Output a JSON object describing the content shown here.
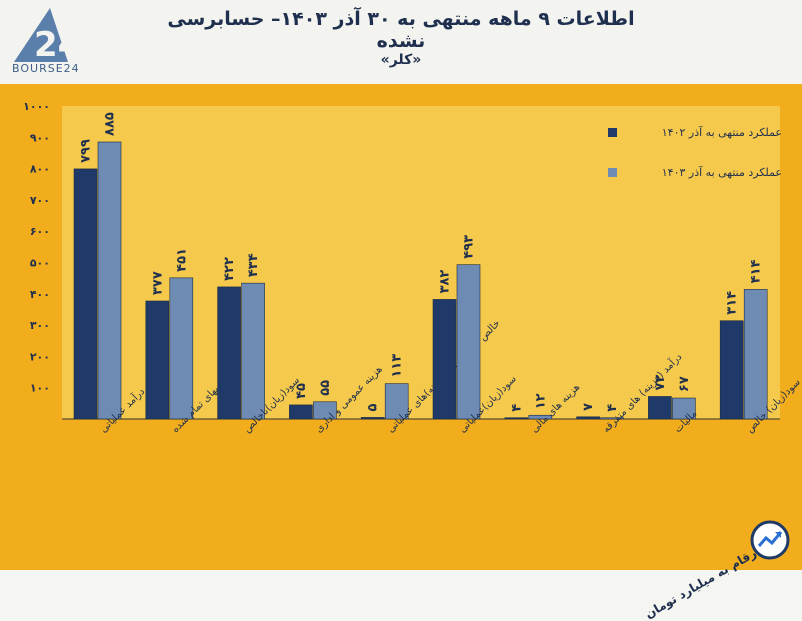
{
  "header": {
    "title": "اطلاعات ۹ ماهه منتهی به ۳۰ آذر ۱۴۰۳– حسابرسی نشده",
    "subtitle": "«کلر»",
    "logo_text": "BOURSE24",
    "logo_mark": "24"
  },
  "footer": {
    "unit_note": "ارقام به میلیارد تومان"
  },
  "colors": {
    "series1": "#1f3a68",
    "series2": "#6d8bb3",
    "panel": "#f2ad1c",
    "plot": "#f5c94b"
  },
  "chart_data": {
    "type": "bar",
    "title": "اطلاعات ۹ ماهه منتهی به ۳۰ آذر ۱۴۰۳– حسابرسی نشده",
    "subtitle": "«کلر»",
    "categories": [
      "درآمد عملیاتی",
      "بهای تمام شده",
      "سود(زیان)ناخالص",
      "هزینه عمومی و اداری",
      "خالص سایر درآمد(هزینه)های عملیاتی",
      "سود(زیان)عملیاتی",
      "هزینه های مالی",
      "درآمد (هزینه) های متفرقه",
      "مالیات",
      "سود(زیان) خالص"
    ],
    "series": [
      {
        "name": "عملکرد منتهی به آذر ۱۴۰۲",
        "values": [
          799,
          377,
          422,
          45,
          5,
          382,
          4,
          7,
          72,
          314
        ],
        "labels": [
          "۷۹۹",
          "۳۷۷",
          "۴۲۲",
          "۴۵",
          "۵",
          "۳۸۲",
          "۴",
          "۷",
          "۷۲",
          "۳۱۴"
        ]
      },
      {
        "name": "عملکرد منتهی به آذر ۱۴۰۳",
        "values": [
          885,
          451,
          434,
          55,
          113,
          493,
          12,
          4,
          67,
          414
        ],
        "labels": [
          "۸۸۵",
          "۴۵۱",
          "۴۳۴",
          "۵۵",
          "۱۱۳",
          "۴۹۳",
          "۱۲",
          "۴",
          "۶۷",
          "۴۱۴"
        ]
      }
    ],
    "yticks": [
      "۱۰۰",
      "۲۰۰",
      "۳۰۰",
      "۴۰۰",
      "۵۰۰",
      "۶۰۰",
      "۷۰۰",
      "۸۰۰",
      "۹۰۰",
      "۱۰۰۰"
    ],
    "ylim": [
      0,
      1000
    ],
    "legend_position": "top-right",
    "grid": false
  }
}
